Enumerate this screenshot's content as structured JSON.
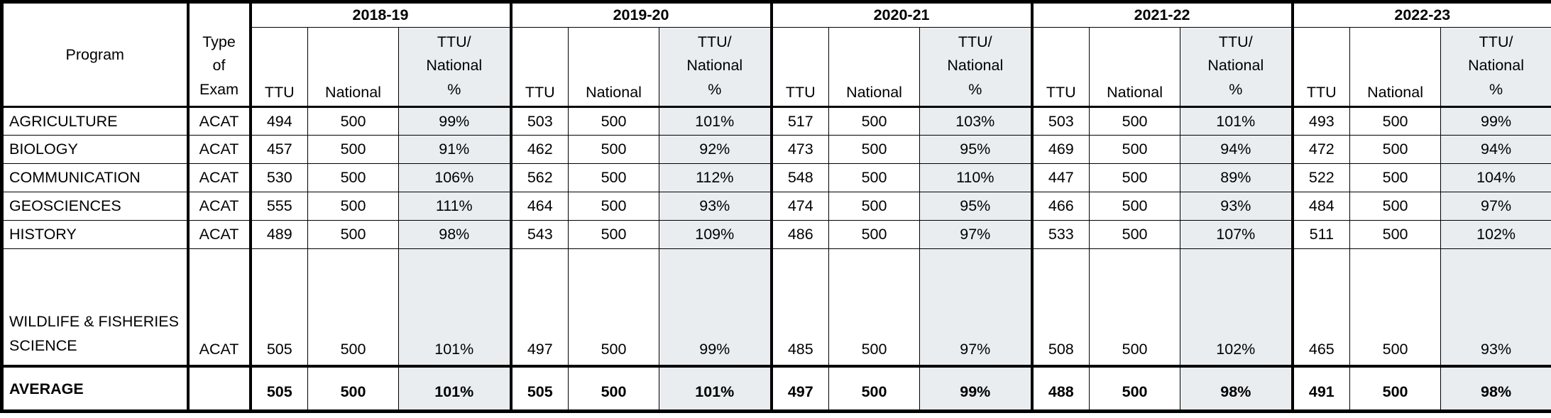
{
  "table": {
    "program_header": "Program",
    "type_of_exam_header": "Type of Exam",
    "years": [
      "2018-19",
      "2019-20",
      "2020-21",
      "2021-22",
      "2022-23"
    ],
    "subcolumns": {
      "ttu": "TTU",
      "national": "National",
      "ratio_lines": [
        "TTU/",
        "National",
        "%"
      ]
    },
    "accent_gray": "#e9edf0",
    "rows": [
      {
        "program": "AGRICULTURE",
        "exam": "ACAT",
        "values": [
          [
            "494",
            "500",
            "99%"
          ],
          [
            "503",
            "500",
            "101%"
          ],
          [
            "517",
            "500",
            "103%"
          ],
          [
            "503",
            "500",
            "101%"
          ],
          [
            "493",
            "500",
            "99%"
          ]
        ]
      },
      {
        "program": "BIOLOGY",
        "exam": "ACAT",
        "values": [
          [
            "457",
            "500",
            "91%"
          ],
          [
            "462",
            "500",
            "92%"
          ],
          [
            "473",
            "500",
            "95%"
          ],
          [
            "469",
            "500",
            "94%"
          ],
          [
            "472",
            "500",
            "94%"
          ]
        ]
      },
      {
        "program": "COMMUNICATION",
        "exam": "ACAT",
        "values": [
          [
            "530",
            "500",
            "106%"
          ],
          [
            "562",
            "500",
            "112%"
          ],
          [
            "548",
            "500",
            "110%"
          ],
          [
            "447",
            "500",
            "89%"
          ],
          [
            "522",
            "500",
            "104%"
          ]
        ]
      },
      {
        "program": "GEOSCIENCES",
        "exam": "ACAT",
        "values": [
          [
            "555",
            "500",
            "111%"
          ],
          [
            "464",
            "500",
            "93%"
          ],
          [
            "474",
            "500",
            "95%"
          ],
          [
            "466",
            "500",
            "93%"
          ],
          [
            "484",
            "500",
            "97%"
          ]
        ]
      },
      {
        "program": "HISTORY",
        "exam": "ACAT",
        "values": [
          [
            "489",
            "500",
            "98%"
          ],
          [
            "543",
            "500",
            "109%"
          ],
          [
            "486",
            "500",
            "97%"
          ],
          [
            "533",
            "500",
            "107%"
          ],
          [
            "511",
            "500",
            "102%"
          ]
        ]
      },
      {
        "program": "WILDLIFE & FISHERIES SCIENCE",
        "exam": "ACAT",
        "values": [
          [
            "505",
            "500",
            "101%"
          ],
          [
            "497",
            "500",
            "99%"
          ],
          [
            "485",
            "500",
            "97%"
          ],
          [
            "508",
            "500",
            "102%"
          ],
          [
            "465",
            "500",
            "93%"
          ]
        ]
      }
    ],
    "average": {
      "label": "AVERAGE",
      "exam": "",
      "values": [
        [
          "505",
          "500",
          "101%"
        ],
        [
          "505",
          "500",
          "101%"
        ],
        [
          "497",
          "500",
          "99%"
        ],
        [
          "488",
          "500",
          "98%"
        ],
        [
          "491",
          "500",
          "98%"
        ]
      ]
    }
  }
}
